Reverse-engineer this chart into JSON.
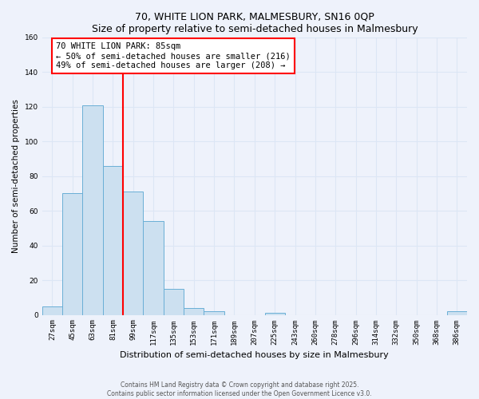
{
  "title": "70, WHITE LION PARK, MALMESBURY, SN16 0QP",
  "subtitle": "Size of property relative to semi-detached houses in Malmesbury",
  "xlabel": "Distribution of semi-detached houses by size in Malmesbury",
  "ylabel": "Number of semi-detached properties",
  "bin_labels": [
    "27sqm",
    "45sqm",
    "63sqm",
    "81sqm",
    "99sqm",
    "117sqm",
    "135sqm",
    "153sqm",
    "171sqm",
    "189sqm",
    "207sqm",
    "225sqm",
    "243sqm",
    "260sqm",
    "278sqm",
    "296sqm",
    "314sqm",
    "332sqm",
    "350sqm",
    "368sqm",
    "386sqm"
  ],
  "bin_values": [
    5,
    70,
    121,
    86,
    71,
    54,
    15,
    4,
    2,
    0,
    0,
    1,
    0,
    0,
    0,
    0,
    0,
    0,
    0,
    0,
    2
  ],
  "bar_color": "#cce0f0",
  "bar_edge_color": "#6aafd6",
  "vline_x_index": 3.5,
  "vline_color": "red",
  "annotation_title": "70 WHITE LION PARK: 85sqm",
  "annotation_line1": "← 50% of semi-detached houses are smaller (216)",
  "annotation_line2": "49% of semi-detached houses are larger (208) →",
  "annotation_box_color": "white",
  "annotation_box_edge": "red",
  "ylim": [
    0,
    160
  ],
  "yticks": [
    0,
    20,
    40,
    60,
    80,
    100,
    120,
    140,
    160
  ],
  "footnote1": "Contains HM Land Registry data © Crown copyright and database right 2025.",
  "footnote2": "Contains public sector information licensed under the Open Government Licence v3.0.",
  "background_color": "#eef2fb",
  "grid_color": "#dce6f5"
}
